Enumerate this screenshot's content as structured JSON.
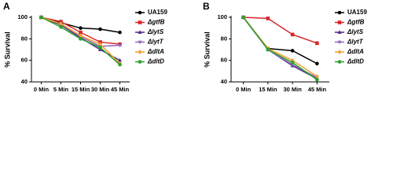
{
  "chart_data": [
    {
      "type": "line",
      "title": "A",
      "y_label": "% Survival",
      "categories": [
        "0 Min",
        "5 Min",
        "15 Min",
        "30 Min",
        "45 Min"
      ],
      "ylim": [
        40,
        100
      ],
      "yticks": [
        40,
        60,
        80,
        100
      ],
      "series": [
        {
          "name": "UA159",
          "color": "#000000",
          "marker": "circle",
          "values": [
            100,
            95,
            90,
            89,
            86
          ]
        },
        {
          "name": "ΔgtfB",
          "color": "#d62728",
          "marker": "square",
          "values": [
            100,
            96,
            86,
            77,
            75
          ]
        },
        {
          "name": "ΔlytS",
          "color": "#4b2a8a",
          "marker": "triangle",
          "values": [
            100,
            93,
            81,
            70,
            60
          ]
        },
        {
          "name": "ΔlytT",
          "color": "#9467bd",
          "marker": "triangle-down",
          "values": [
            100,
            94,
            82,
            73,
            74
          ]
        },
        {
          "name": "ΔdltA",
          "color": "#f0a030",
          "marker": "diamond",
          "values": [
            100,
            94,
            83,
            75,
            57
          ]
        },
        {
          "name": "ΔdltD",
          "color": "#2ca02c",
          "marker": "circle",
          "values": [
            100,
            91,
            80,
            72,
            56
          ]
        }
      ]
    },
    {
      "type": "line",
      "title": "B",
      "y_label": "% Survival",
      "categories": [
        "0 Min",
        "15 Min",
        "30 Min",
        "45 Min"
      ],
      "ylim": [
        40,
        100
      ],
      "yticks": [
        40,
        60,
        80,
        100
      ],
      "series": [
        {
          "name": "UA159",
          "color": "#000000",
          "marker": "circle",
          "values": [
            100,
            71,
            69,
            57
          ]
        },
        {
          "name": "ΔgtfB",
          "color": "#d62728",
          "marker": "square",
          "values": [
            100,
            99,
            84,
            76
          ]
        },
        {
          "name": "ΔlytS",
          "color": "#4b2a8a",
          "marker": "triangle",
          "values": [
            100,
            70,
            55,
            43
          ]
        },
        {
          "name": "ΔlytT",
          "color": "#9467bd",
          "marker": "triangle-down",
          "values": [
            100,
            70,
            56,
            44
          ]
        },
        {
          "name": "ΔdltA",
          "color": "#f0a030",
          "marker": "diamond",
          "values": [
            100,
            71,
            60,
            45
          ]
        },
        {
          "name": "ΔdltD",
          "color": "#2ca02c",
          "marker": "circle",
          "values": [
            100,
            70,
            58,
            42
          ]
        }
      ]
    }
  ]
}
